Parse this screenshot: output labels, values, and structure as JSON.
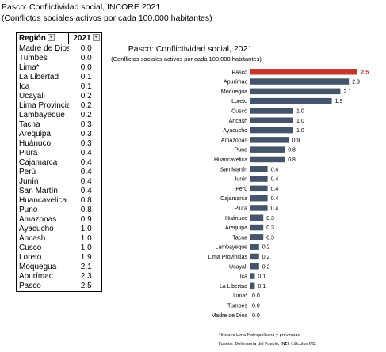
{
  "header": {
    "title": "Pasco: Conflictividad social, INCORE 2021",
    "subtitle": "(Conflictos sociales activos por cada 100,000 habitantes)"
  },
  "table": {
    "columns": [
      "Región",
      "2021"
    ],
    "rows": [
      [
        "Madre de Dios",
        "0.0"
      ],
      [
        "Tumbes",
        "0.0"
      ],
      [
        "Lima*",
        "0.0"
      ],
      [
        "La Libertad",
        "0.1"
      ],
      [
        "Ica",
        "0.1"
      ],
      [
        "Ucayali",
        "0.2"
      ],
      [
        "Lima Provincias",
        "0.2"
      ],
      [
        "Lambayeque",
        "0.2"
      ],
      [
        "Tacna",
        "0.3"
      ],
      [
        "Arequipa",
        "0.3"
      ],
      [
        "Huánuco",
        "0.3"
      ],
      [
        "Piura",
        "0.4"
      ],
      [
        "Cajamarca",
        "0.4"
      ],
      [
        "Perú",
        "0.4"
      ],
      [
        "Junín",
        "0.4"
      ],
      [
        "San Martín",
        "0.4"
      ],
      [
        "Huancavelica",
        "0.8"
      ],
      [
        "Puno",
        "0.8"
      ],
      [
        "Amazonas",
        "0.9"
      ],
      [
        "Ayacucho",
        "1.0"
      ],
      [
        "Áncash",
        "1.0"
      ],
      [
        "Cusco",
        "1.0"
      ],
      [
        "Loreto",
        "1.9"
      ],
      [
        "Moquegua",
        "2.1"
      ],
      [
        "Apurímac",
        "2.3"
      ],
      [
        "Pasco",
        "2.5"
      ]
    ]
  },
  "chart_data": {
    "type": "bar",
    "orientation": "horizontal",
    "title": "Pasco: Conflictividad social, 2021",
    "subtitle": "(Conflictos sociales activos por cada 100,000 habitantes)",
    "categories": [
      "Pasco",
      "Apurímac",
      "Moquegua",
      "Loreto",
      "Cusco",
      "Áncash",
      "Ayacucho",
      "Amazonas",
      "Puno",
      "Huancavelica",
      "San Martín",
      "Junín",
      "Perú",
      "Cajamarca",
      "Piura",
      "Huánuco",
      "Arequipa",
      "Tacna",
      "Lambayeque",
      "Lima Provincias",
      "Ucayali",
      "Ica",
      "La Libertad",
      "Lima*",
      "Tumbes",
      "Madre de Dios"
    ],
    "values": [
      2.5,
      2.3,
      2.1,
      1.9,
      1.0,
      1.0,
      1.0,
      0.9,
      0.8,
      0.8,
      0.4,
      0.4,
      0.4,
      0.4,
      0.4,
      0.3,
      0.3,
      0.3,
      0.2,
      0.2,
      0.2,
      0.1,
      0.1,
      0.0,
      0.0,
      0.0
    ],
    "value_labels": [
      "2.5",
      "2.3",
      "2.1",
      "1.9",
      "1.0",
      "1.0",
      "1.0",
      "0.9",
      "0.8",
      "0.8",
      "0.4",
      "0.4",
      "0.4",
      "0.4",
      "0.4",
      "0.3",
      "0.3",
      "0.3",
      "0.2",
      "0.2",
      "0.2",
      "0.1",
      "0.1",
      "0.0",
      "0.0",
      "0.0"
    ],
    "highlight": "Pasco",
    "colors": {
      "bar": "#44546a",
      "highlight": "#c0392b"
    },
    "xlim": [
      0,
      2.5
    ],
    "grid": false,
    "legend": "none"
  },
  "notes": {
    "footnote": "*Incluye Lima Metropolitana y provincias",
    "source": "Fuente: Defensoría del Pueblo, INEI. Cálculos IPE."
  }
}
